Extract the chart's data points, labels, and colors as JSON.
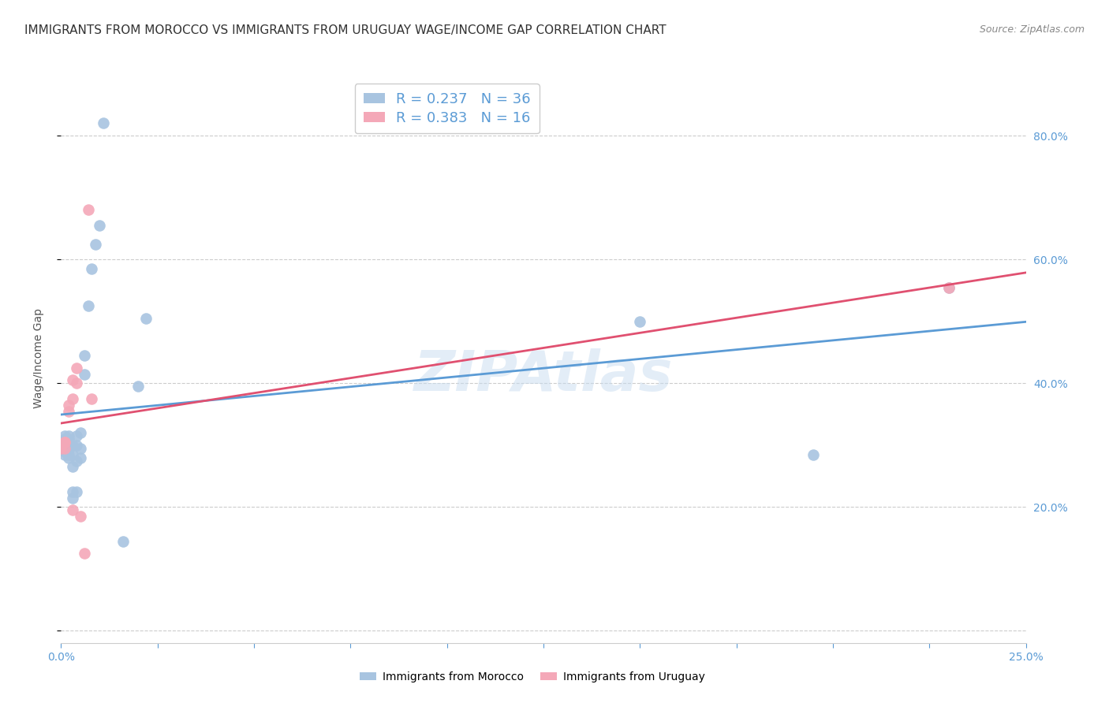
{
  "title": "IMMIGRANTS FROM MOROCCO VS IMMIGRANTS FROM URUGUAY WAGE/INCOME GAP CORRELATION CHART",
  "source": "Source: ZipAtlas.com",
  "ylabel": "Wage/Income Gap",
  "xlim": [
    0.0,
    0.25
  ],
  "ylim": [
    -0.02,
    0.9
  ],
  "morocco_color": "#a8c4e0",
  "uruguay_color": "#f4a8b8",
  "morocco_R": 0.237,
  "morocco_N": 36,
  "uruguay_R": 0.383,
  "uruguay_N": 16,
  "watermark": "ZIPAtlas",
  "morocco_x": [
    0.0,
    0.001,
    0.001,
    0.001,
    0.001,
    0.001,
    0.002,
    0.002,
    0.002,
    0.002,
    0.002,
    0.003,
    0.003,
    0.003,
    0.003,
    0.003,
    0.004,
    0.004,
    0.004,
    0.004,
    0.005,
    0.005,
    0.005,
    0.006,
    0.006,
    0.007,
    0.008,
    0.009,
    0.01,
    0.011,
    0.016,
    0.02,
    0.022,
    0.15,
    0.195,
    0.23
  ],
  "morocco_y": [
    0.295,
    0.285,
    0.29,
    0.295,
    0.31,
    0.315,
    0.28,
    0.285,
    0.295,
    0.31,
    0.315,
    0.215,
    0.225,
    0.265,
    0.285,
    0.3,
    0.225,
    0.275,
    0.3,
    0.315,
    0.28,
    0.295,
    0.32,
    0.415,
    0.445,
    0.525,
    0.585,
    0.625,
    0.655,
    0.82,
    0.145,
    0.395,
    0.505,
    0.5,
    0.285,
    0.555
  ],
  "uruguay_x": [
    0.0,
    0.001,
    0.001,
    0.001,
    0.002,
    0.002,
    0.003,
    0.003,
    0.003,
    0.004,
    0.004,
    0.005,
    0.006,
    0.007,
    0.008,
    0.23
  ],
  "uruguay_y": [
    0.295,
    0.295,
    0.305,
    0.305,
    0.355,
    0.365,
    0.195,
    0.375,
    0.405,
    0.4,
    0.425,
    0.185,
    0.125,
    0.68,
    0.375,
    0.555
  ],
  "grid_color": "#cccccc",
  "line_morocco_color": "#5b9bd5",
  "line_uruguay_color": "#e05070",
  "background_color": "#ffffff",
  "title_fontsize": 11,
  "axis_fontsize": 10,
  "legend_fontsize": 13
}
